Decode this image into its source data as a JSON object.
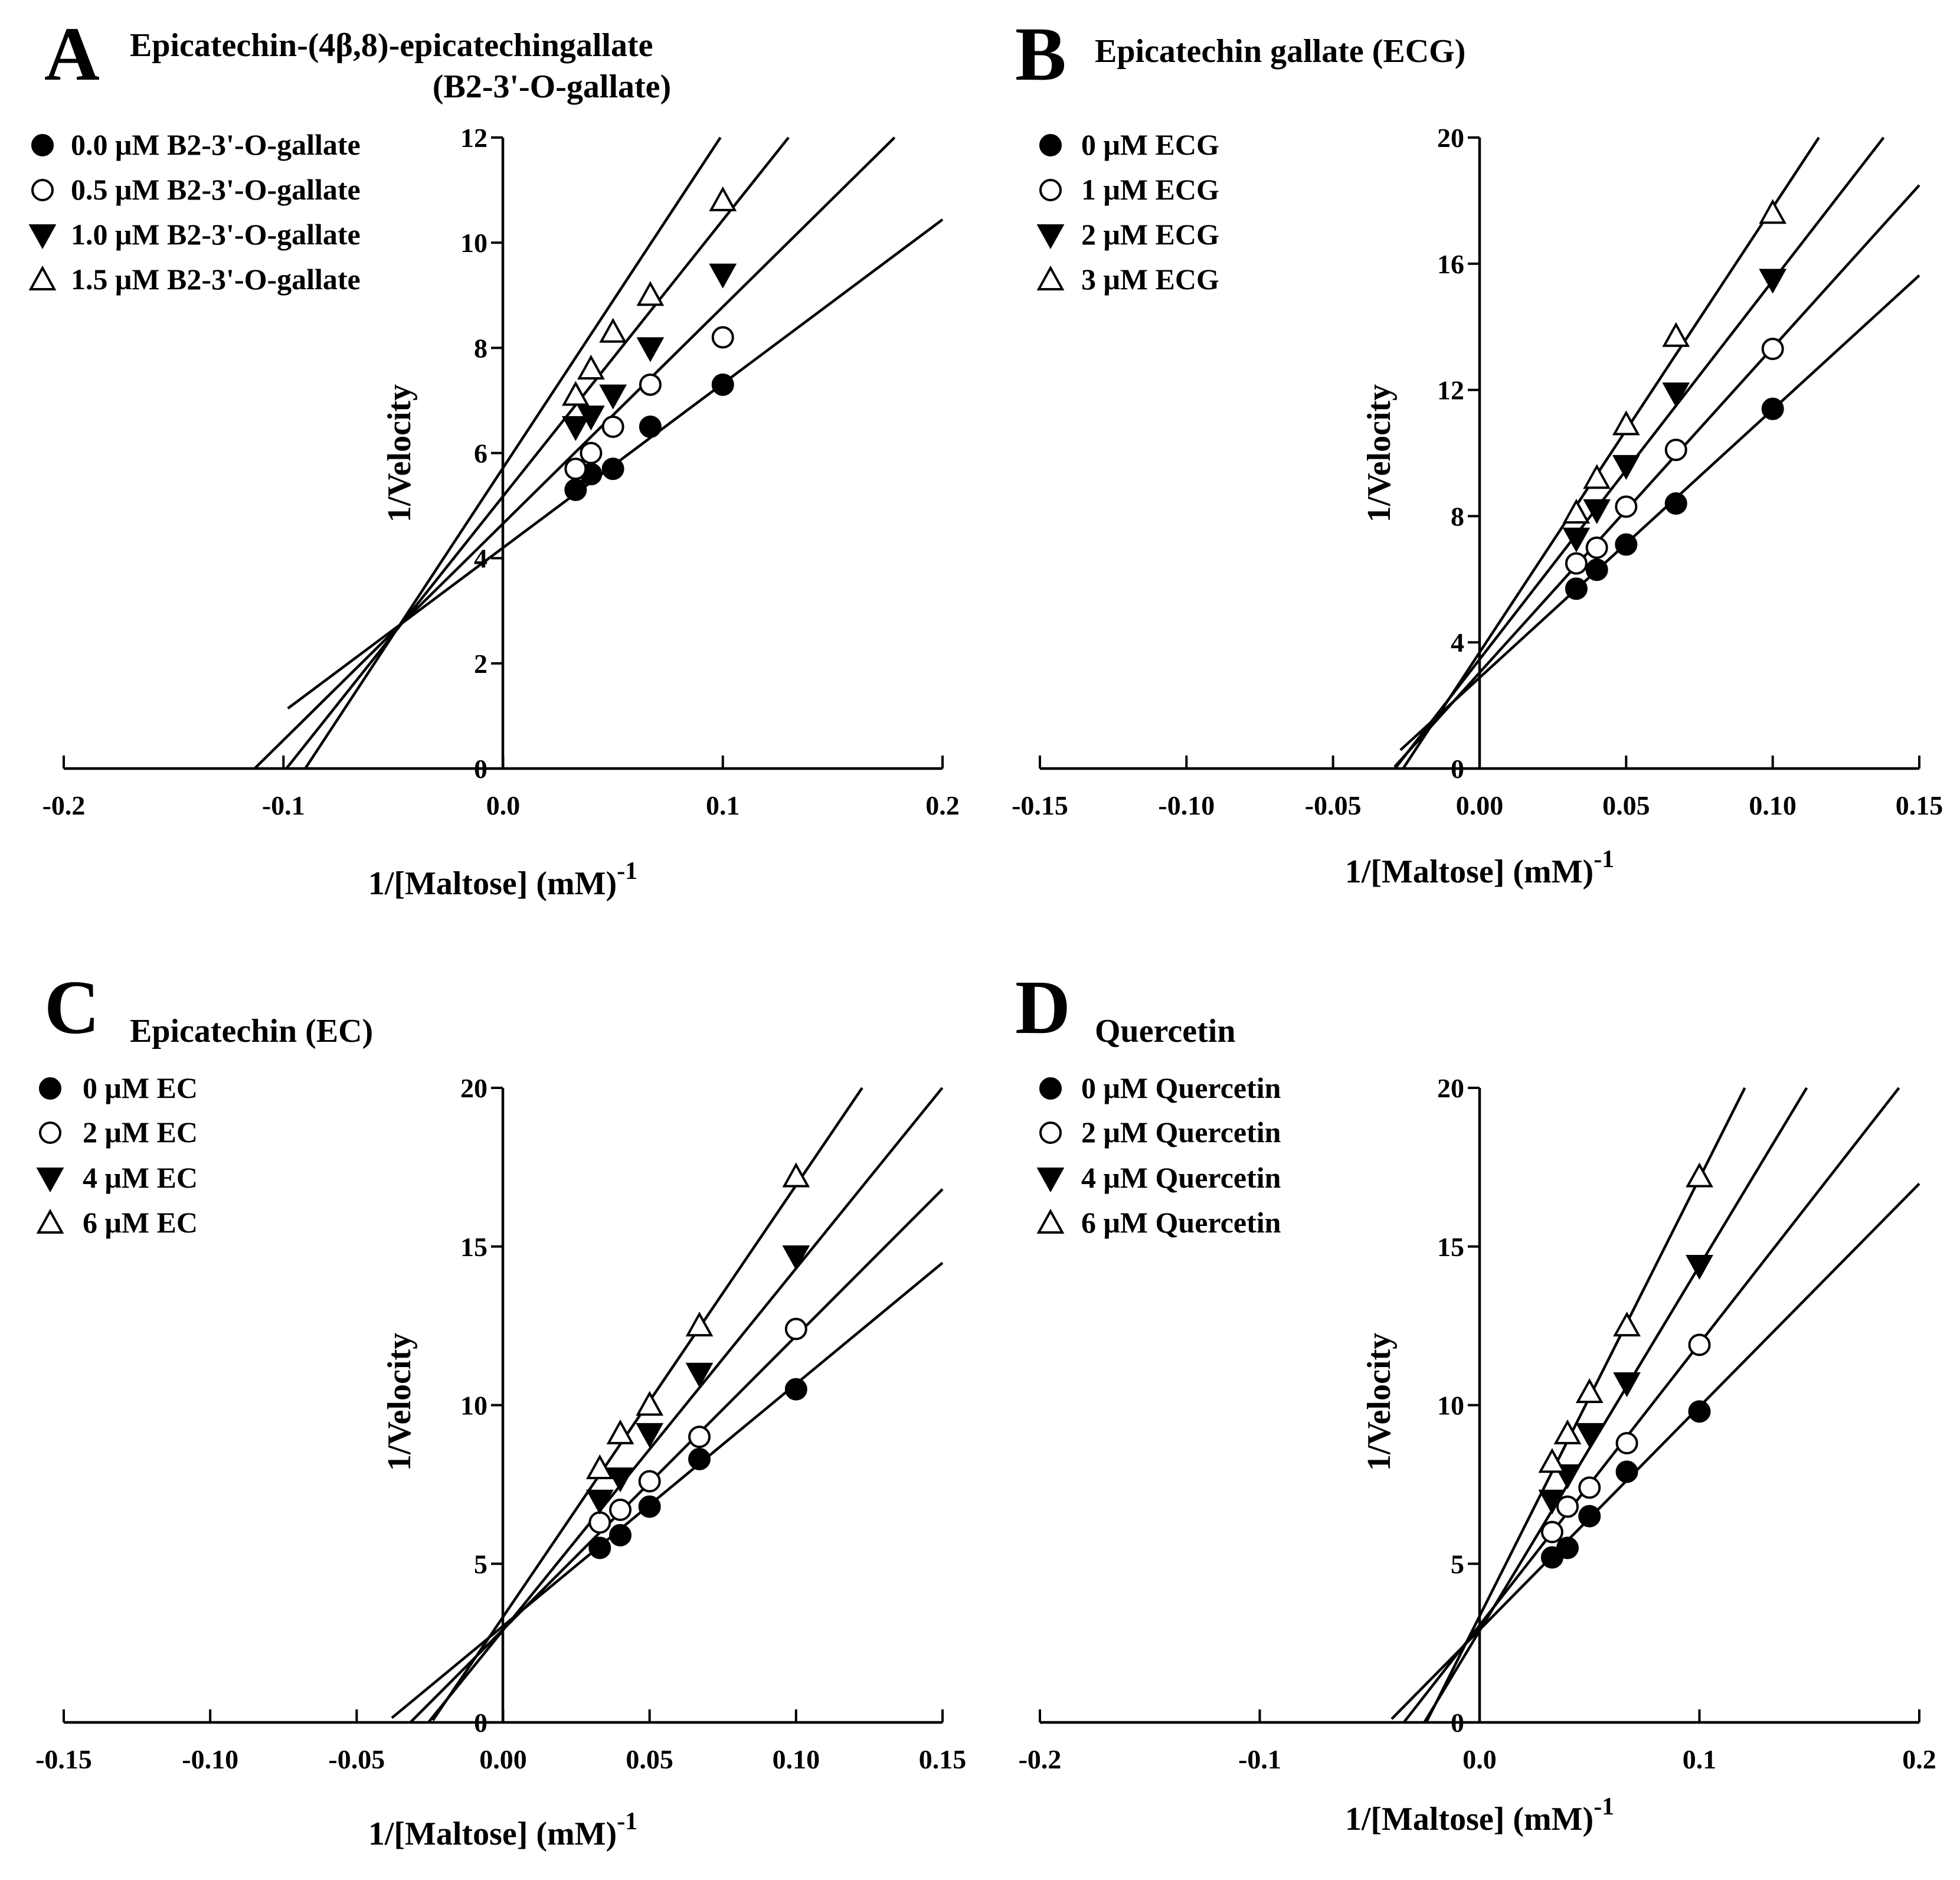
{
  "chart_data": [
    {
      "type": "scatter",
      "panel": "A",
      "title": "Epicatechin-(4β,8)-epicatechingallate",
      "subtitle": "(B2-3'-O-gallate)",
      "xlabel": "1/[Maltose] (mM)",
      "xlabel_sup": "-1",
      "ylabel": "1/Velocity",
      "xlim": [
        -0.2,
        0.2
      ],
      "ylim": [
        0,
        12
      ],
      "xticks": [
        -0.2,
        -0.1,
        0.0,
        0.1,
        0.2
      ],
      "xtick_labels": [
        "-0.2",
        "-0.1",
        "0.0",
        "0.1",
        "0.2"
      ],
      "yticks": [
        0,
        2,
        4,
        6,
        8,
        10,
        12
      ],
      "ytick_labels": [
        "0",
        "2",
        "4",
        "6",
        "8",
        "10",
        "12"
      ],
      "fit_xmin": [
        -0.098,
        -0.113,
        -0.125,
        -0.138
      ],
      "fit_xmax": 0.2,
      "x": [
        0.033,
        0.04,
        0.05,
        0.067,
        0.1
      ],
      "series": [
        {
          "name": "0.0 μM  B2-3'-O-gallate",
          "marker": "filled-circle",
          "values": [
            5.3,
            5.6,
            5.7,
            6.5,
            7.3
          ],
          "fit": [
            31.2,
            4.2
          ]
        },
        {
          "name": "0.5 μM  B2-3'-O-gallate",
          "marker": "open-circle",
          "values": [
            5.7,
            6.0,
            6.5,
            7.3,
            8.2
          ],
          "fit": [
            41.2,
            4.66
          ]
        },
        {
          "name": "1.0 μM  B2-3'-O-gallate",
          "marker": "filled-triangle-down",
          "values": [
            6.5,
            6.7,
            7.1,
            8.0,
            9.4
          ],
          "fit": [
            52.5,
            5.18
          ]
        },
        {
          "name": "1.5 μM  B2-3'-O-gallate",
          "marker": "open-triangle-up",
          "values": [
            7.1,
            7.6,
            8.3,
            9.0,
            10.8
          ],
          "fit": [
            63.5,
            5.72
          ]
        }
      ]
    },
    {
      "type": "scatter",
      "panel": "B",
      "title": "Epicatechin gallate (ECG)",
      "subtitle": "",
      "xlabel": "1/[Maltose] (mM)",
      "xlabel_sup": "-1",
      "ylabel": "1/Velocity",
      "xlim": [
        -0.15,
        0.15
      ],
      "ylim": [
        0,
        20
      ],
      "xticks": [
        -0.15,
        -0.1,
        -0.05,
        0.0,
        0.05,
        0.1,
        0.15
      ],
      "xtick_labels": [
        "-0.15",
        "-0.10",
        "-0.05",
        "0.00",
        "0.05",
        "0.10",
        "0.15"
      ],
      "yticks": [
        0,
        4,
        8,
        12,
        16,
        20
      ],
      "ytick_labels": [
        "0",
        "4",
        "8",
        "12",
        "16",
        "20"
      ],
      "fit_xmin": [
        -0.027,
        -0.029,
        -0.031,
        -0.033
      ],
      "fit_xmax": 0.15,
      "x": [
        0.033,
        0.04,
        0.05,
        0.067,
        0.1
      ],
      "series": [
        {
          "name": "0 μM ECG",
          "marker": "filled-circle",
          "values": [
            5.7,
            6.3,
            7.1,
            8.4,
            11.4
          ],
          "fit": [
            85,
            2.88
          ]
        },
        {
          "name": "1 μM ECG",
          "marker": "open-circle",
          "values": [
            6.5,
            7.0,
            8.3,
            10.1,
            13.3
          ],
          "fit": [
            103,
            3.04
          ]
        },
        {
          "name": "2 μM ECG",
          "marker": "filled-triangle-down",
          "values": [
            7.3,
            8.2,
            9.6,
            11.9,
            15.5
          ],
          "fit": [
            120,
            3.46
          ]
        },
        {
          "name": "3 μM ECG",
          "marker": "open-triangle-up",
          "values": [
            8.1,
            9.2,
            10.9,
            13.7,
            17.6
          ],
          "fit": [
            141,
            3.68
          ]
        }
      ]
    },
    {
      "type": "scatter",
      "panel": "C",
      "title": "Epicatechin (EC)",
      "subtitle": "",
      "xlabel": "1/[Maltose] (mM)",
      "xlabel_sup": "-1",
      "ylabel": "1/Velocity",
      "xlim": [
        -0.15,
        0.15
      ],
      "ylim": [
        0,
        20
      ],
      "xticks": [
        -0.15,
        -0.1,
        -0.05,
        0.0,
        0.05,
        0.1,
        0.15
      ],
      "xtick_labels": [
        "-0.15",
        "-0.10",
        "-0.05",
        "0.00",
        "0.05",
        "0.10",
        "0.15"
      ],
      "yticks": [
        0,
        5,
        10,
        15,
        20
      ],
      "ytick_labels": [
        "0",
        "5",
        "10",
        "15",
        "20"
      ],
      "fit_xmin": [
        -0.038,
        -0.032,
        -0.028,
        -0.024
      ],
      "fit_xmax": 0.15,
      "x": [
        0.033,
        0.04,
        0.05,
        0.067,
        0.1
      ],
      "series": [
        {
          "name": "0 μM EC",
          "marker": "filled-circle",
          "values": [
            5.5,
            5.9,
            6.8,
            8.3,
            10.5
          ],
          "fit": [
            76.3,
            3.04
          ]
        },
        {
          "name": "2 μM EC",
          "marker": "open-circle",
          "values": [
            6.3,
            6.7,
            7.6,
            9.0,
            12.4
          ],
          "fit": [
            92.5,
            2.93
          ]
        },
        {
          "name": "4 μM EC",
          "marker": "filled-triangle-down",
          "values": [
            7.0,
            7.7,
            9.1,
            11.0,
            14.7
          ],
          "fit": [
            114,
            2.91
          ]
        },
        {
          "name": "6 μM EC",
          "marker": "open-triangle-up",
          "values": [
            8.0,
            9.1,
            10.0,
            12.5,
            17.2
          ],
          "fit": [
            136,
            3.33
          ]
        }
      ]
    },
    {
      "type": "scatter",
      "panel": "D",
      "title": "Quercetin",
      "subtitle": "",
      "xlabel": "1/[Maltose] (mM)",
      "xlabel_sup": "-1",
      "ylabel": "1/Velocity",
      "xlim": [
        -0.2,
        0.2
      ],
      "ylim": [
        0,
        20
      ],
      "xticks": [
        -0.2,
        -0.1,
        0.0,
        0.1,
        0.2
      ],
      "xtick_labels": [
        "-0.2",
        "-0.1",
        "0.0",
        "0.1",
        "0.2"
      ],
      "yticks": [
        0,
        5,
        10,
        15,
        20
      ],
      "ytick_labels": [
        "0",
        "5",
        "10",
        "15",
        "20"
      ],
      "fit_xmin": [
        -0.04,
        -0.035,
        -0.03,
        -0.026
      ],
      "fit_xmax": 0.2,
      "x": [
        0.033,
        0.04,
        0.05,
        0.067,
        0.1
      ],
      "series": [
        {
          "name": "0 μM Quercetin",
          "marker": "filled-circle",
          "values": [
            5.2,
            5.5,
            6.5,
            7.9,
            9.8
          ],
          "fit": [
            70.3,
            2.92
          ]
        },
        {
          "name": "2 μM Quercetin",
          "marker": "open-circle",
          "values": [
            6.0,
            6.8,
            7.4,
            8.8,
            11.9
          ],
          "fit": [
            88.8,
            3.06
          ]
        },
        {
          "name": "4 μM Quercetin",
          "marker": "filled-triangle-down",
          "values": [
            7.0,
            7.8,
            9.1,
            10.7,
            14.4
          ],
          "fit": [
            115,
            2.89
          ]
        },
        {
          "name": "6 μM Quercetin",
          "marker": "open-triangle-up",
          "values": [
            8.2,
            9.1,
            10.4,
            12.5,
            17.2
          ],
          "fit": [
            138,
            3.35
          ]
        }
      ]
    }
  ]
}
